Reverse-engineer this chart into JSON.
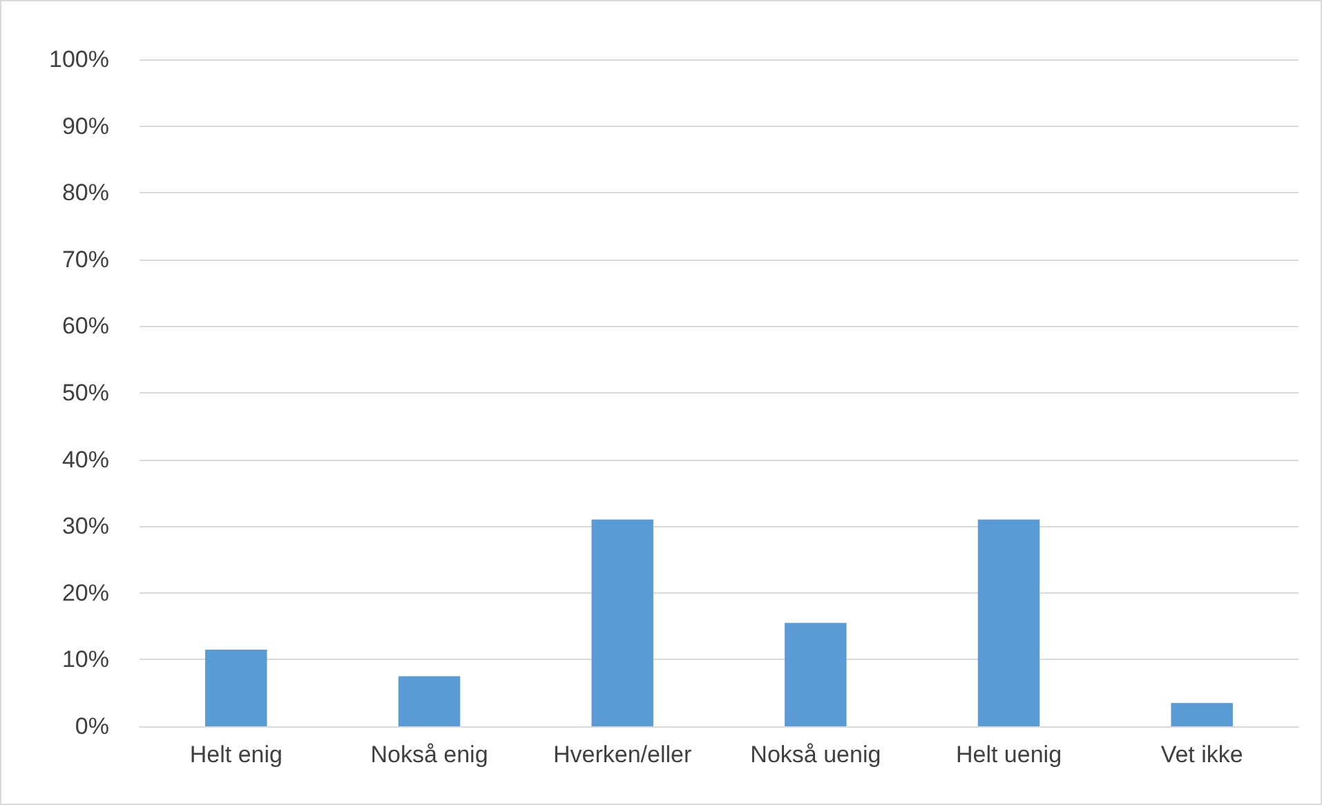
{
  "chart_data": {
    "type": "bar",
    "categories": [
      "Helt enig",
      "Nokså enig",
      "Hverken/eller",
      "Nokså uenig",
      "Helt uenig",
      "Vet ikke"
    ],
    "values": [
      11.5,
      7.5,
      31,
      15.5,
      31,
      3.5
    ],
    "color": "#5b9bd5",
    "ylim": [
      0,
      100
    ],
    "yticks": [
      {
        "value": 0,
        "label": "0%"
      },
      {
        "value": 10,
        "label": "10%"
      },
      {
        "value": 20,
        "label": "20%"
      },
      {
        "value": 30,
        "label": "30%"
      },
      {
        "value": 40,
        "label": "40%"
      },
      {
        "value": 50,
        "label": "50%"
      },
      {
        "value": 60,
        "label": "60%"
      },
      {
        "value": 70,
        "label": "70%"
      },
      {
        "value": 80,
        "label": "80%"
      },
      {
        "value": 90,
        "label": "90%"
      },
      {
        "value": 100,
        "label": "100%"
      }
    ],
    "grid": "y"
  }
}
